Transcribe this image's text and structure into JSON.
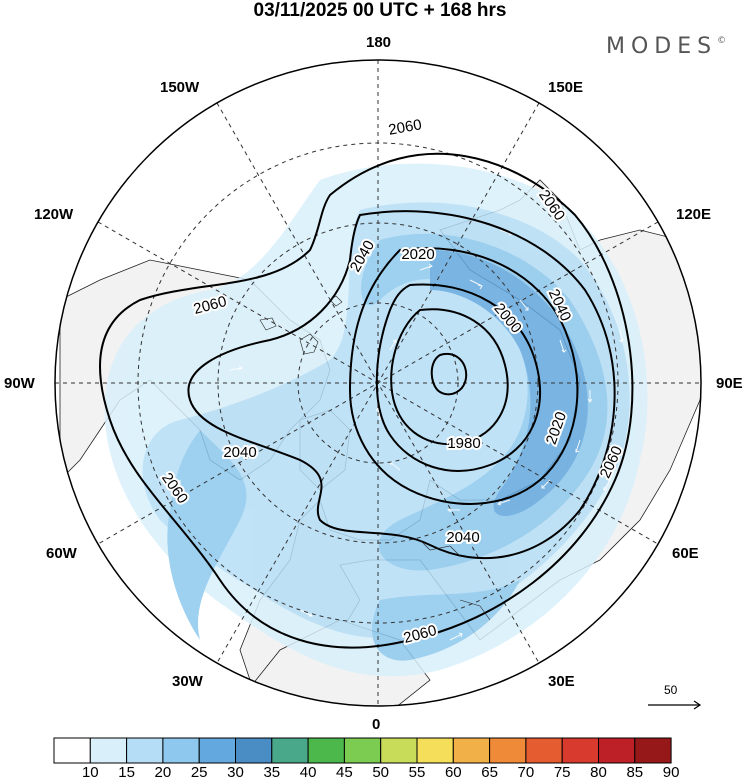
{
  "title": "03/11/2025  00 UTC  + 168 hrs",
  "logo": "MODES",
  "logo_mark": "©",
  "longitudes": {
    "top": "180",
    "bottom": "0",
    "left": "90W",
    "right": "90E",
    "upper_left_1": "150W",
    "upper_left_2": "120W",
    "upper_right_1": "150E",
    "upper_right_2": "120E",
    "lower_left_1": "60W",
    "lower_left_2": "30W",
    "lower_right_1": "60E",
    "lower_right_2": "30E"
  },
  "contour_labels": [
    "2060",
    "2060",
    "2060",
    "2060",
    "2060",
    "2060",
    "2040",
    "2040",
    "2040",
    "2040",
    "2020",
    "2020",
    "2000",
    "1980"
  ],
  "vector_scale": "50",
  "colorbar": {
    "ticks": [
      "10",
      "15",
      "20",
      "25",
      "30",
      "35",
      "40",
      "45",
      "50",
      "55",
      "60",
      "65",
      "70",
      "75",
      "80",
      "85",
      "90"
    ],
    "colors": [
      "#ffffff",
      "#d9f0fb",
      "#b5def6",
      "#8ec8ee",
      "#63a8de",
      "#4a8cc4",
      "#4aa88a",
      "#4cb84c",
      "#7ccc52",
      "#c8dc5a",
      "#f5df5a",
      "#f2b048",
      "#ee8a38",
      "#e45c30",
      "#d83a2e",
      "#be2028",
      "#961818"
    ]
  },
  "colors": {
    "land": "#f2f2f2",
    "ocean": "#ffffff",
    "contour": "#000000",
    "arrow": "#ffffff"
  }
}
